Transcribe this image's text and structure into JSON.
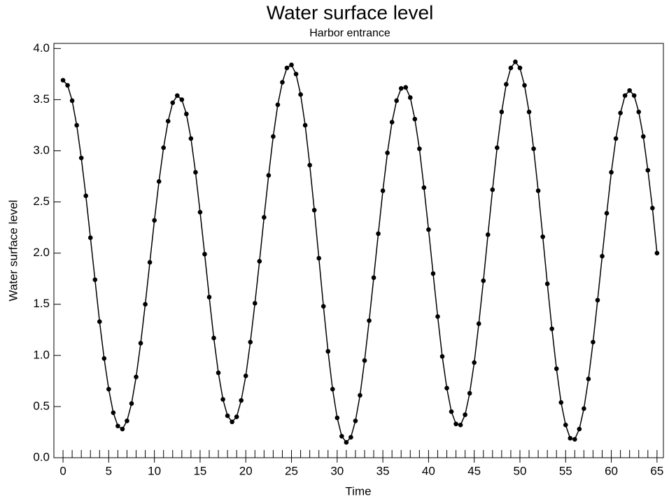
{
  "chart_data": {
    "type": "line",
    "title": "Water surface level",
    "subtitle": "Harbor entrance",
    "x_label": "Time",
    "y_label": "Water surface level",
    "x": [
      0,
      0.5,
      1,
      1.5,
      2,
      2.5,
      3,
      3.5,
      4,
      4.5,
      5,
      5.5,
      6,
      6.5,
      7,
      7.5,
      8,
      8.5,
      9,
      9.5,
      10,
      10.5,
      11,
      11.5,
      12,
      12.5,
      13,
      13.5,
      14,
      14.5,
      15,
      15.5,
      16,
      16.5,
      17,
      17.5,
      18,
      18.5,
      19,
      19.5,
      20,
      20.5,
      21,
      21.5,
      22,
      22.5,
      23,
      23.5,
      24,
      24.5,
      25,
      25.5,
      26,
      26.5,
      27,
      27.5,
      28,
      28.5,
      29,
      29.5,
      30,
      30.5,
      31,
      31.5,
      32,
      32.5,
      33,
      33.5,
      34,
      34.5,
      35,
      35.5,
      36,
      36.5,
      37,
      37.5,
      38,
      38.5,
      39,
      39.5,
      40,
      40.5,
      41,
      41.5,
      42,
      42.5,
      43,
      43.5,
      44,
      44.5,
      45,
      45.5,
      46,
      46.5,
      47,
      47.5,
      48,
      48.5,
      49,
      49.5,
      50,
      50.5,
      51,
      51.5,
      52,
      52.5,
      53,
      53.5,
      54,
      54.5,
      55,
      55.5,
      56,
      56.5,
      57,
      57.5,
      58,
      58.5,
      59,
      59.5,
      60,
      60.5,
      61,
      61.5,
      62,
      62.5,
      63,
      63.5,
      64,
      64.5,
      65
    ],
    "series": [
      {
        "name": "Water surface level",
        "color": "#000000",
        "values": [
          3.69,
          3.64,
          3.49,
          3.25,
          2.93,
          2.56,
          2.15,
          1.74,
          1.33,
          0.97,
          0.67,
          0.44,
          0.31,
          0.28,
          0.36,
          0.53,
          0.79,
          1.12,
          1.5,
          1.91,
          2.32,
          2.7,
          3.03,
          3.29,
          3.47,
          3.54,
          3.5,
          3.36,
          3.12,
          2.79,
          2.4,
          1.99,
          1.57,
          1.17,
          0.83,
          0.57,
          0.41,
          0.35,
          0.4,
          0.56,
          0.8,
          1.13,
          1.51,
          1.92,
          2.35,
          2.76,
          3.14,
          3.45,
          3.67,
          3.81,
          3.84,
          3.75,
          3.55,
          3.25,
          2.86,
          2.42,
          1.95,
          1.48,
          1.04,
          0.67,
          0.39,
          0.21,
          0.15,
          0.2,
          0.36,
          0.61,
          0.95,
          1.34,
          1.76,
          2.19,
          2.61,
          2.98,
          3.28,
          3.49,
          3.61,
          3.62,
          3.52,
          3.31,
          3.02,
          2.64,
          2.23,
          1.8,
          1.38,
          0.99,
          0.68,
          0.45,
          0.33,
          0.32,
          0.42,
          0.63,
          0.93,
          1.31,
          1.73,
          2.18,
          2.62,
          3.03,
          3.38,
          3.65,
          3.81,
          3.87,
          3.81,
          3.64,
          3.38,
          3.02,
          2.61,
          2.16,
          1.7,
          1.26,
          0.87,
          0.54,
          0.32,
          0.19,
          0.18,
          0.28,
          0.48,
          0.77,
          1.13,
          1.54,
          1.97,
          2.39,
          2.79,
          3.12,
          3.37,
          3.54,
          3.59,
          3.54,
          3.38,
          3.14,
          2.81,
          2.44,
          2.0
        ]
      }
    ],
    "xlim": [
      -1,
      65.7
    ],
    "ylim": [
      0,
      4.05
    ],
    "xticks": [
      0,
      5,
      10,
      15,
      20,
      25,
      30,
      35,
      40,
      45,
      50,
      55,
      60,
      65
    ],
    "xminorticks": [
      0,
      1,
      2,
      3,
      4,
      5,
      6,
      7,
      8,
      9,
      10,
      11,
      12,
      13,
      14,
      15,
      16,
      17,
      18,
      19,
      20,
      21,
      22,
      23,
      24,
      25,
      26,
      27,
      28,
      29,
      30,
      31,
      32,
      33,
      34,
      35,
      36,
      37,
      38,
      39,
      40,
      41,
      42,
      43,
      44,
      45,
      46,
      47,
      48,
      49,
      50,
      51,
      52,
      53,
      54,
      55,
      56,
      57,
      58,
      59,
      60,
      61,
      62,
      63,
      64,
      65
    ],
    "yticks": [
      {
        "value": 0,
        "label": "0.0"
      },
      0.5,
      {
        "value": 1,
        "label": "1.0"
      },
      1.5,
      {
        "value": 2,
        "label": "2.0"
      },
      2.5,
      {
        "value": 3,
        "label": "3.0"
      },
      3.5,
      {
        "value": 4,
        "label": "4.0"
      }
    ],
    "markers": true,
    "grid": false
  }
}
